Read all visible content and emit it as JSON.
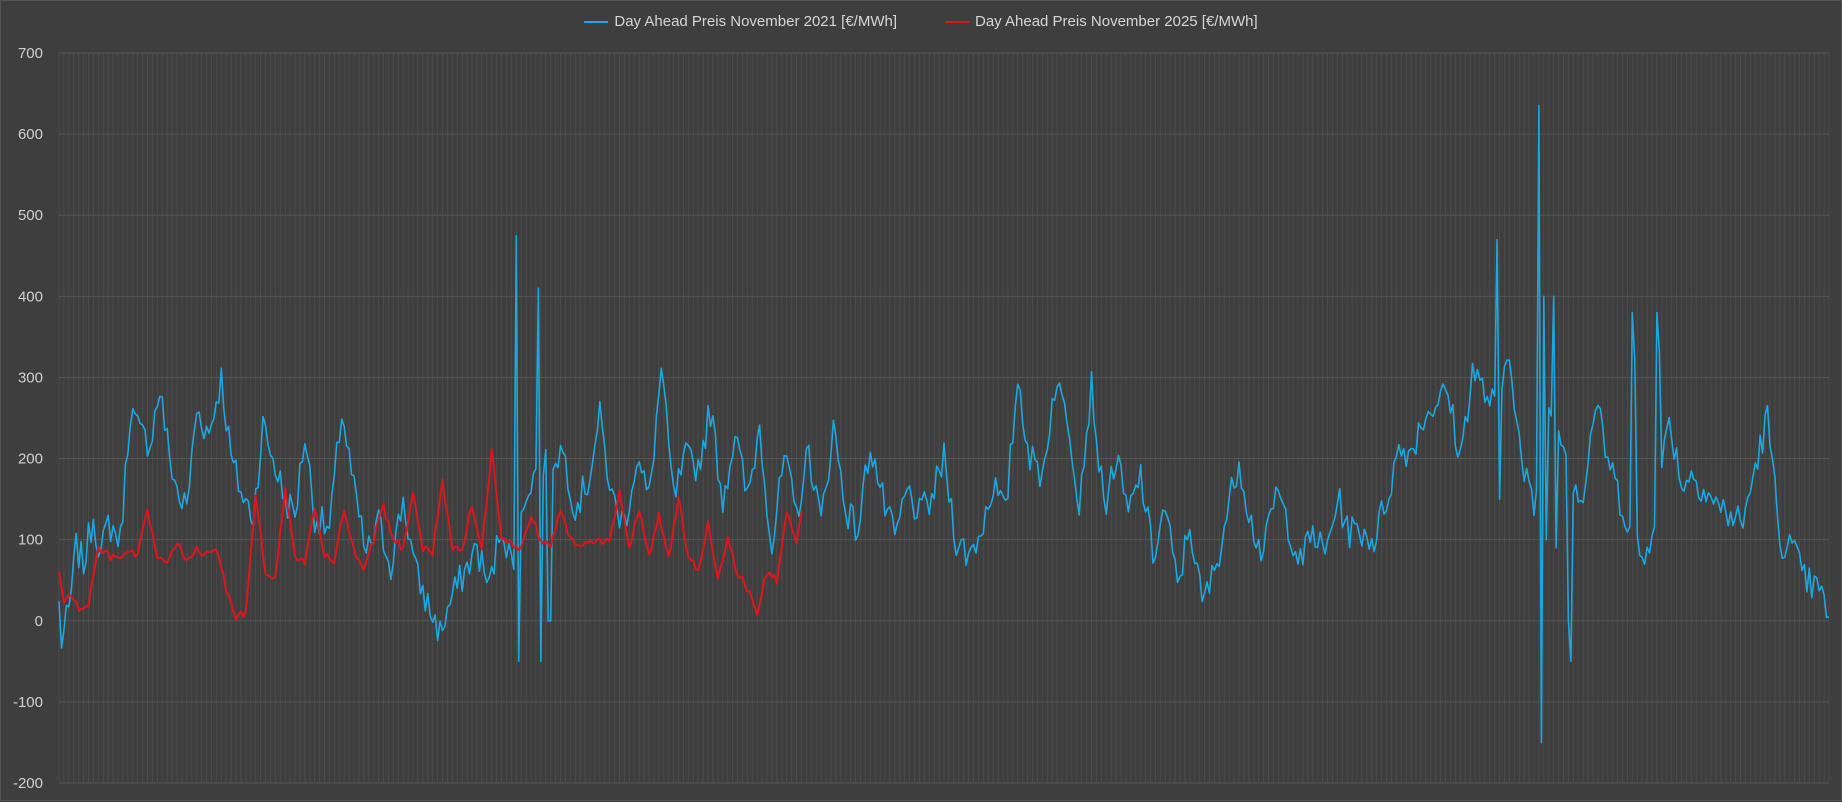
{
  "chart_data": {
    "type": "line",
    "title": "",
    "xlabel": "",
    "ylabel": "",
    "ylim": [
      -200,
      700
    ],
    "yticks": [
      700,
      600,
      500,
      400,
      300,
      200,
      100,
      0,
      -100,
      -200
    ],
    "xlim": [
      0,
      720
    ],
    "grid": true,
    "legend_position": "top-center",
    "series": [
      {
        "name": "Day Ahead Preis November 2021 [€/MWh]",
        "color": "#1ba8e0",
        "anchors": [
          [
            0,
            20
          ],
          [
            1,
            -25
          ],
          [
            4,
            10
          ],
          [
            7,
            90
          ],
          [
            10,
            70
          ],
          [
            14,
            130
          ],
          [
            17,
            80
          ],
          [
            20,
            120
          ],
          [
            25,
            100
          ],
          [
            29,
            260
          ],
          [
            33,
            230
          ],
          [
            37,
            220
          ],
          [
            41,
            285
          ],
          [
            45,
            200
          ],
          [
            49,
            150
          ],
          [
            52,
            140
          ],
          [
            56,
            260
          ],
          [
            61,
            230
          ],
          [
            66,
            300
          ],
          [
            70,
            200
          ],
          [
            75,
            150
          ],
          [
            79,
            130
          ],
          [
            83,
            240
          ],
          [
            87,
            200
          ],
          [
            92,
            150
          ],
          [
            96,
            130
          ],
          [
            100,
            230
          ],
          [
            104,
            130
          ],
          [
            110,
            110
          ],
          [
            115,
            260
          ],
          [
            120,
            160
          ],
          [
            125,
            80
          ],
          [
            130,
            120
          ],
          [
            135,
            70
          ],
          [
            140,
            150
          ],
          [
            145,
            60
          ],
          [
            150,
            20
          ],
          [
            155,
            -15
          ],
          [
            160,
            30
          ],
          [
            165,
            60
          ],
          [
            170,
            90
          ],
          [
            175,
            40
          ],
          [
            180,
            120
          ],
          [
            185,
            60
          ],
          [
            190,
            160
          ],
          [
            195,
            190
          ],
          [
            200,
            200
          ],
          [
            205,
            210
          ],
          [
            210,
            140
          ],
          [
            215,
            170
          ],
          [
            220,
            250
          ],
          [
            225,
            150
          ],
          [
            230,
            120
          ],
          [
            235,
            200
          ],
          [
            240,
            150
          ],
          [
            245,
            310
          ],
          [
            250,
            150
          ],
          [
            255,
            200
          ],
          [
            260,
            190
          ],
          [
            265,
            260
          ],
          [
            270,
            150
          ],
          [
            275,
            230
          ],
          [
            280,
            150
          ],
          [
            285,
            240
          ],
          [
            290,
            90
          ],
          [
            295,
            200
          ],
          [
            300,
            130
          ],
          [
            305,
            210
          ],
          [
            310,
            120
          ],
          [
            315,
            240
          ],
          [
            320,
            140
          ],
          [
            325,
            110
          ],
          [
            330,
            220
          ],
          [
            335,
            150
          ],
          [
            340,
            100
          ],
          [
            345,
            160
          ],
          [
            350,
            130
          ],
          [
            355,
            150
          ],
          [
            360,
            200
          ],
          [
            365,
            100
          ],
          [
            370,
            80
          ],
          [
            375,
            110
          ],
          [
            380,
            170
          ],
          [
            385,
            130
          ],
          [
            390,
            300
          ],
          [
            395,
            200
          ],
          [
            400,
            180
          ],
          [
            405,
            290
          ],
          [
            410,
            260
          ],
          [
            415,
            150
          ],
          [
            420,
            290
          ],
          [
            425,
            140
          ],
          [
            430,
            200
          ],
          [
            435,
            130
          ],
          [
            440,
            180
          ],
          [
            445,
            80
          ],
          [
            450,
            140
          ],
          [
            455,
            40
          ],
          [
            460,
            120
          ],
          [
            465,
            20
          ],
          [
            470,
            60
          ],
          [
            475,
            130
          ],
          [
            480,
            200
          ],
          [
            485,
            120
          ],
          [
            490,
            80
          ],
          [
            495,
            160
          ],
          [
            500,
            120
          ],
          [
            505,
            70
          ],
          [
            510,
            110
          ],
          [
            515,
            80
          ],
          [
            520,
            150
          ],
          [
            525,
            110
          ],
          [
            530,
            110
          ],
          [
            535,
            100
          ],
          [
            540,
            150
          ],
          [
            545,
            210
          ],
          [
            550,
            210
          ],
          [
            555,
            250
          ],
          [
            560,
            270
          ],
          [
            565,
            280
          ],
          [
            570,
            200
          ],
          [
            575,
            310
          ],
          [
            580,
            280
          ],
          [
            585,
            260
          ],
          [
            590,
            340
          ],
          [
            595,
            190
          ],
          [
            600,
            140
          ],
          [
            605,
            270
          ],
          [
            610,
            250
          ],
          [
            615,
            180
          ],
          [
            620,
            150
          ],
          [
            625,
            270
          ],
          [
            630,
            200
          ],
          [
            635,
            150
          ],
          [
            640,
            110
          ],
          [
            645,
            70
          ],
          [
            650,
            150
          ],
          [
            655,
            250
          ],
          [
            660,
            170
          ],
          [
            665,
            180
          ],
          [
            670,
            160
          ],
          [
            675,
            140
          ],
          [
            680,
            130
          ],
          [
            685,
            120
          ],
          [
            690,
            190
          ],
          [
            695,
            250
          ],
          [
            700,
            100
          ],
          [
            705,
            90
          ],
          [
            710,
            50
          ],
          [
            715,
            40
          ],
          [
            720,
            10
          ]
        ],
        "spikes": [
          [
            186,
            475,
            -50
          ],
          [
            195,
            410,
            -50
          ],
          [
            199,
            0,
            0
          ],
          [
            585,
            470,
            150
          ],
          [
            602,
            635,
            -150
          ],
          [
            604,
            400,
            100
          ],
          [
            608,
            400,
            90
          ],
          [
            614,
            0,
            -50
          ],
          [
            640,
            380,
            320
          ],
          [
            650,
            380,
            330
          ]
        ]
      },
      {
        "name": "Day Ahead Preis November 2025 [€/MWh]",
        "color": "#e0141e",
        "anchors": [
          [
            0,
            60
          ],
          [
            2,
            25
          ],
          [
            5,
            30
          ],
          [
            8,
            15
          ],
          [
            12,
            20
          ],
          [
            16,
            90
          ],
          [
            20,
            80
          ],
          [
            24,
            75
          ],
          [
            28,
            85
          ],
          [
            32,
            80
          ],
          [
            36,
            135
          ],
          [
            40,
            80
          ],
          [
            44,
            70
          ],
          [
            48,
            95
          ],
          [
            52,
            75
          ],
          [
            56,
            90
          ],
          [
            60,
            80
          ],
          [
            64,
            90
          ],
          [
            68,
            40
          ],
          [
            72,
            5
          ],
          [
            76,
            10
          ],
          [
            80,
            150
          ],
          [
            84,
            60
          ],
          [
            88,
            50
          ],
          [
            92,
            165
          ],
          [
            96,
            80
          ],
          [
            100,
            70
          ],
          [
            104,
            140
          ],
          [
            108,
            80
          ],
          [
            112,
            70
          ],
          [
            116,
            140
          ],
          [
            120,
            85
          ],
          [
            124,
            60
          ],
          [
            128,
            100
          ],
          [
            132,
            140
          ],
          [
            136,
            100
          ],
          [
            140,
            90
          ],
          [
            144,
            160
          ],
          [
            148,
            90
          ],
          [
            152,
            85
          ],
          [
            156,
            170
          ],
          [
            160,
            90
          ],
          [
            164,
            90
          ],
          [
            168,
            140
          ],
          [
            172,
            90
          ],
          [
            176,
            210
          ],
          [
            180,
            100
          ],
          [
            184,
            95
          ],
          [
            188,
            90
          ],
          [
            192,
            130
          ],
          [
            196,
            100
          ],
          [
            200,
            95
          ],
          [
            204,
            140
          ],
          [
            208,
            100
          ],
          [
            212,
            90
          ],
          [
            216,
            95
          ],
          [
            220,
            100
          ],
          [
            224,
            95
          ],
          [
            228,
            160
          ],
          [
            232,
            90
          ],
          [
            236,
            140
          ],
          [
            240,
            80
          ],
          [
            244,
            130
          ],
          [
            248,
            75
          ],
          [
            252,
            150
          ],
          [
            256,
            80
          ],
          [
            260,
            60
          ],
          [
            264,
            120
          ],
          [
            268,
            55
          ],
          [
            272,
            100
          ],
          [
            276,
            60
          ],
          [
            280,
            40
          ],
          [
            284,
            10
          ],
          [
            288,
            60
          ],
          [
            292,
            50
          ],
          [
            296,
            135
          ],
          [
            300,
            95
          ],
          [
            302,
            130
          ]
        ],
        "spikes": []
      }
    ]
  }
}
